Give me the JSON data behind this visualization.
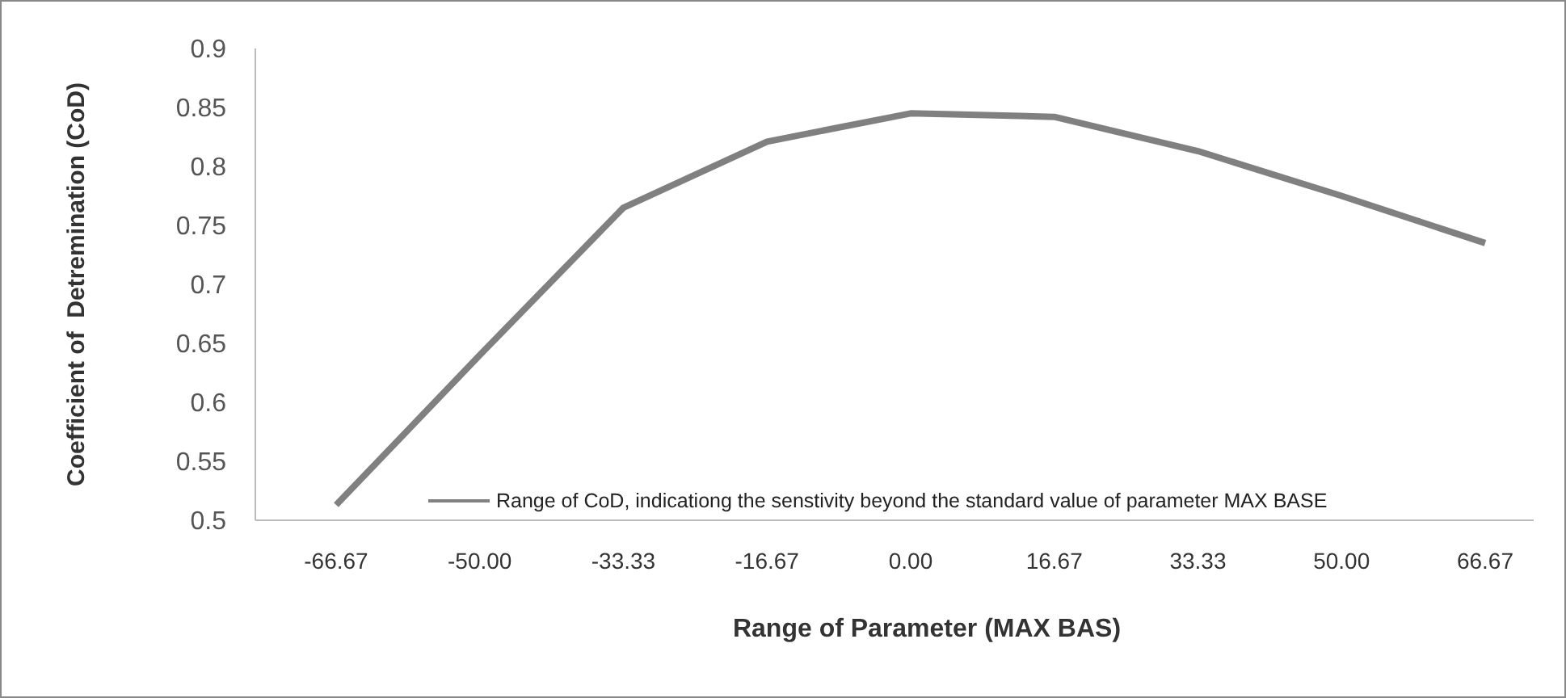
{
  "chart_data": {
    "type": "line",
    "xlabel": "Range of Parameter (MAX BAS)",
    "ylabel": "Coefficient of  Detremination (CoD)",
    "categories": [
      "-66.67",
      "-50.00",
      "-33.33",
      "-16.67",
      "0.00",
      "16.67",
      "33.33",
      "50.00",
      "66.67"
    ],
    "series": [
      {
        "name": "Range of CoD, indicationg the senstivity beyond the standard value of parameter MAX BASE",
        "color": "#808080",
        "values": [
          0.513,
          0.64,
          0.765,
          0.821,
          0.845,
          0.842,
          0.813,
          0.775,
          0.735
        ]
      }
    ],
    "ylim": [
      0.5,
      0.9
    ],
    "yticks": [
      0.5,
      0.55,
      0.6,
      0.65,
      0.7,
      0.75,
      0.8,
      0.85,
      0.9
    ],
    "grid": false,
    "legend": "bottom right",
    "marker": "none",
    "line_style": "solid"
  }
}
